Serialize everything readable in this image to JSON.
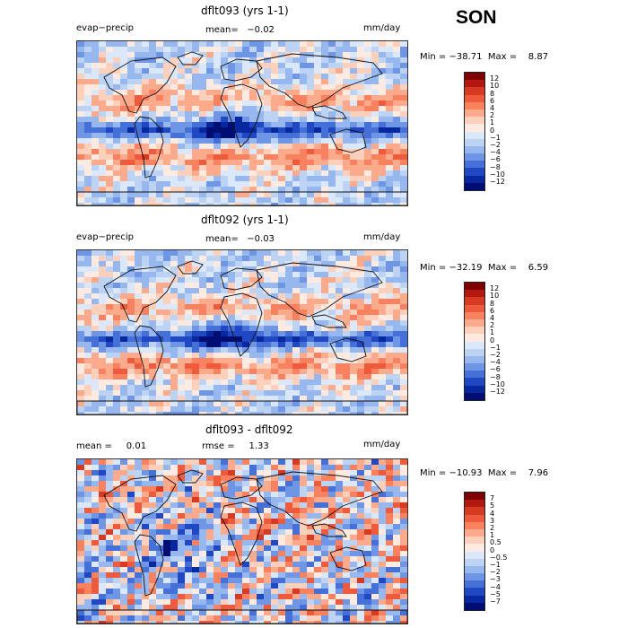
{
  "season": "SON",
  "panels": [
    {
      "title": "dflt093 (yrs 1-1)",
      "left_label": "evap−precip",
      "mean_text": "mean=   −0.02",
      "units": "mm/day",
      "minmax": "Min = −38.71  Max =    8.87",
      "colorbar_labels": [
        "12",
        "10",
        "8",
        "6",
        "4",
        "2",
        "1",
        "0",
        "−1",
        "−2",
        "−4",
        "−6",
        "−8",
        "−10",
        "−12"
      ]
    },
    {
      "title": "dflt092 (yrs 1-1)",
      "left_label": "evap−precip",
      "mean_text": "mean=   −0.03",
      "units": "mm/day",
      "minmax": "Min = −32.19  Max =    6.59",
      "colorbar_labels": [
        "12",
        "10",
        "8",
        "6",
        "4",
        "2",
        "1",
        "0",
        "−1",
        "−2",
        "−4",
        "−6",
        "−8",
        "−10",
        "−12"
      ]
    },
    {
      "title": "dflt093 - dflt092",
      "left_label": "mean =     0.01",
      "mean_text": "rmse =     1.33",
      "units": "mm/day",
      "minmax": "Min = −10.93  Max =    7.96",
      "colorbar_labels": [
        "7",
        "5",
        "4",
        "3",
        "2",
        "1",
        "0.5",
        "0",
        "−0.5",
        "−1",
        "−2",
        "−3",
        "−4",
        "−5",
        "−7"
      ]
    }
  ],
  "colors": {
    "bins": [
      "#7f0000",
      "#b2180f",
      "#d73a22",
      "#ee5b3c",
      "#f8825f",
      "#fbaa8c",
      "#fdd0bc",
      "#fdebe1",
      "#dbe8f9",
      "#bdd3f4",
      "#97b8ee",
      "#6f96e4",
      "#4470d8",
      "#1f48c2",
      "#0828a0",
      "#000e74"
    ]
  },
  "chart_data": [
    {
      "type": "heatmap",
      "title": "dflt093 (yrs 1-1)",
      "variable": "evap−precip",
      "units": "mm/day",
      "mean": -0.02,
      "min": -38.71,
      "max": 8.87,
      "levels": [
        -12,
        -10,
        -8,
        -6,
        -4,
        -2,
        -1,
        0,
        1,
        2,
        4,
        6,
        8,
        10,
        12
      ]
    },
    {
      "type": "heatmap",
      "title": "dflt092 (yrs 1-1)",
      "variable": "evap−precip",
      "units": "mm/day",
      "mean": -0.03,
      "min": -32.19,
      "max": 6.59,
      "levels": [
        -12,
        -10,
        -8,
        -6,
        -4,
        -2,
        -1,
        0,
        1,
        2,
        4,
        6,
        8,
        10,
        12
      ]
    },
    {
      "type": "heatmap",
      "title": "dflt093 - dflt092",
      "units": "mm/day",
      "mean": 0.01,
      "rmse": 1.33,
      "min": -10.93,
      "max": 7.96,
      "levels": [
        -7,
        -5,
        -4,
        -3,
        -2,
        -1,
        -0.5,
        0,
        0.5,
        1,
        2,
        3,
        4,
        5,
        7
      ]
    }
  ]
}
